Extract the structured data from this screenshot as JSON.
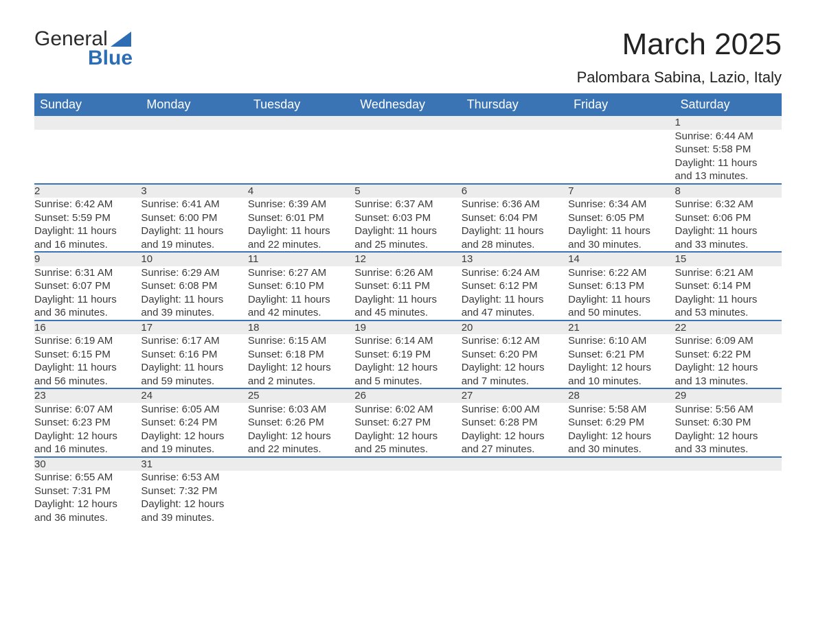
{
  "logo": {
    "line1": "General",
    "line2": "Blue",
    "triangle_color": "#2d6db3"
  },
  "title": "March 2025",
  "location": "Palombara Sabina, Lazio, Italy",
  "header_bg": "#3a74b4",
  "header_fg": "#ffffff",
  "daynum_bg": "#ececec",
  "border_color": "#3a74b4",
  "text_color": "#3a3a3a",
  "title_fontsize": 44,
  "location_fontsize": 22,
  "header_fontsize": 18,
  "cell_fontsize": 15,
  "weekdays": [
    "Sunday",
    "Monday",
    "Tuesday",
    "Wednesday",
    "Thursday",
    "Friday",
    "Saturday"
  ],
  "weeks": [
    [
      null,
      null,
      null,
      null,
      null,
      null,
      {
        "d": "1",
        "sr": "Sunrise: 6:44 AM",
        "ss": "Sunset: 5:58 PM",
        "dl1": "Daylight: 11 hours",
        "dl2": "and 13 minutes."
      }
    ],
    [
      {
        "d": "2",
        "sr": "Sunrise: 6:42 AM",
        "ss": "Sunset: 5:59 PM",
        "dl1": "Daylight: 11 hours",
        "dl2": "and 16 minutes."
      },
      {
        "d": "3",
        "sr": "Sunrise: 6:41 AM",
        "ss": "Sunset: 6:00 PM",
        "dl1": "Daylight: 11 hours",
        "dl2": "and 19 minutes."
      },
      {
        "d": "4",
        "sr": "Sunrise: 6:39 AM",
        "ss": "Sunset: 6:01 PM",
        "dl1": "Daylight: 11 hours",
        "dl2": "and 22 minutes."
      },
      {
        "d": "5",
        "sr": "Sunrise: 6:37 AM",
        "ss": "Sunset: 6:03 PM",
        "dl1": "Daylight: 11 hours",
        "dl2": "and 25 minutes."
      },
      {
        "d": "6",
        "sr": "Sunrise: 6:36 AM",
        "ss": "Sunset: 6:04 PM",
        "dl1": "Daylight: 11 hours",
        "dl2": "and 28 minutes."
      },
      {
        "d": "7",
        "sr": "Sunrise: 6:34 AM",
        "ss": "Sunset: 6:05 PM",
        "dl1": "Daylight: 11 hours",
        "dl2": "and 30 minutes."
      },
      {
        "d": "8",
        "sr": "Sunrise: 6:32 AM",
        "ss": "Sunset: 6:06 PM",
        "dl1": "Daylight: 11 hours",
        "dl2": "and 33 minutes."
      }
    ],
    [
      {
        "d": "9",
        "sr": "Sunrise: 6:31 AM",
        "ss": "Sunset: 6:07 PM",
        "dl1": "Daylight: 11 hours",
        "dl2": "and 36 minutes."
      },
      {
        "d": "10",
        "sr": "Sunrise: 6:29 AM",
        "ss": "Sunset: 6:08 PM",
        "dl1": "Daylight: 11 hours",
        "dl2": "and 39 minutes."
      },
      {
        "d": "11",
        "sr": "Sunrise: 6:27 AM",
        "ss": "Sunset: 6:10 PM",
        "dl1": "Daylight: 11 hours",
        "dl2": "and 42 minutes."
      },
      {
        "d": "12",
        "sr": "Sunrise: 6:26 AM",
        "ss": "Sunset: 6:11 PM",
        "dl1": "Daylight: 11 hours",
        "dl2": "and 45 minutes."
      },
      {
        "d": "13",
        "sr": "Sunrise: 6:24 AM",
        "ss": "Sunset: 6:12 PM",
        "dl1": "Daylight: 11 hours",
        "dl2": "and 47 minutes."
      },
      {
        "d": "14",
        "sr": "Sunrise: 6:22 AM",
        "ss": "Sunset: 6:13 PM",
        "dl1": "Daylight: 11 hours",
        "dl2": "and 50 minutes."
      },
      {
        "d": "15",
        "sr": "Sunrise: 6:21 AM",
        "ss": "Sunset: 6:14 PM",
        "dl1": "Daylight: 11 hours",
        "dl2": "and 53 minutes."
      }
    ],
    [
      {
        "d": "16",
        "sr": "Sunrise: 6:19 AM",
        "ss": "Sunset: 6:15 PM",
        "dl1": "Daylight: 11 hours",
        "dl2": "and 56 minutes."
      },
      {
        "d": "17",
        "sr": "Sunrise: 6:17 AM",
        "ss": "Sunset: 6:16 PM",
        "dl1": "Daylight: 11 hours",
        "dl2": "and 59 minutes."
      },
      {
        "d": "18",
        "sr": "Sunrise: 6:15 AM",
        "ss": "Sunset: 6:18 PM",
        "dl1": "Daylight: 12 hours",
        "dl2": "and 2 minutes."
      },
      {
        "d": "19",
        "sr": "Sunrise: 6:14 AM",
        "ss": "Sunset: 6:19 PM",
        "dl1": "Daylight: 12 hours",
        "dl2": "and 5 minutes."
      },
      {
        "d": "20",
        "sr": "Sunrise: 6:12 AM",
        "ss": "Sunset: 6:20 PM",
        "dl1": "Daylight: 12 hours",
        "dl2": "and 7 minutes."
      },
      {
        "d": "21",
        "sr": "Sunrise: 6:10 AM",
        "ss": "Sunset: 6:21 PM",
        "dl1": "Daylight: 12 hours",
        "dl2": "and 10 minutes."
      },
      {
        "d": "22",
        "sr": "Sunrise: 6:09 AM",
        "ss": "Sunset: 6:22 PM",
        "dl1": "Daylight: 12 hours",
        "dl2": "and 13 minutes."
      }
    ],
    [
      {
        "d": "23",
        "sr": "Sunrise: 6:07 AM",
        "ss": "Sunset: 6:23 PM",
        "dl1": "Daylight: 12 hours",
        "dl2": "and 16 minutes."
      },
      {
        "d": "24",
        "sr": "Sunrise: 6:05 AM",
        "ss": "Sunset: 6:24 PM",
        "dl1": "Daylight: 12 hours",
        "dl2": "and 19 minutes."
      },
      {
        "d": "25",
        "sr": "Sunrise: 6:03 AM",
        "ss": "Sunset: 6:26 PM",
        "dl1": "Daylight: 12 hours",
        "dl2": "and 22 minutes."
      },
      {
        "d": "26",
        "sr": "Sunrise: 6:02 AM",
        "ss": "Sunset: 6:27 PM",
        "dl1": "Daylight: 12 hours",
        "dl2": "and 25 minutes."
      },
      {
        "d": "27",
        "sr": "Sunrise: 6:00 AM",
        "ss": "Sunset: 6:28 PM",
        "dl1": "Daylight: 12 hours",
        "dl2": "and 27 minutes."
      },
      {
        "d": "28",
        "sr": "Sunrise: 5:58 AM",
        "ss": "Sunset: 6:29 PM",
        "dl1": "Daylight: 12 hours",
        "dl2": "and 30 minutes."
      },
      {
        "d": "29",
        "sr": "Sunrise: 5:56 AM",
        "ss": "Sunset: 6:30 PM",
        "dl1": "Daylight: 12 hours",
        "dl2": "and 33 minutes."
      }
    ],
    [
      {
        "d": "30",
        "sr": "Sunrise: 6:55 AM",
        "ss": "Sunset: 7:31 PM",
        "dl1": "Daylight: 12 hours",
        "dl2": "and 36 minutes."
      },
      {
        "d": "31",
        "sr": "Sunrise: 6:53 AM",
        "ss": "Sunset: 7:32 PM",
        "dl1": "Daylight: 12 hours",
        "dl2": "and 39 minutes."
      },
      null,
      null,
      null,
      null,
      null
    ]
  ]
}
